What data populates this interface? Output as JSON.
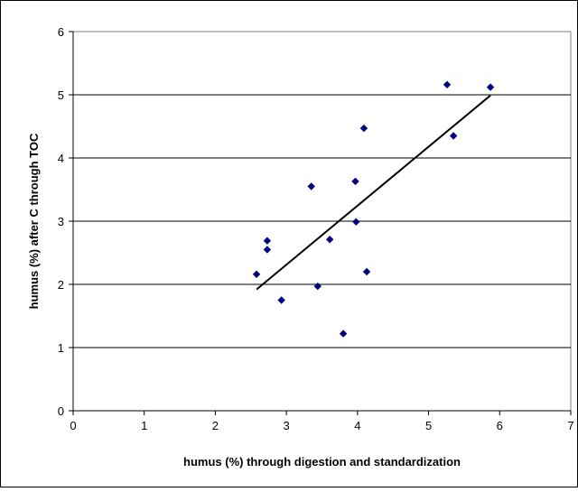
{
  "chart_data": {
    "type": "scatter",
    "title": "",
    "xlabel": "humus (%) through digestion and standardization",
    "ylabel": "humus (%) after C through TOC",
    "xlim": [
      0,
      7
    ],
    "ylim": [
      0,
      6
    ],
    "x_ticks": [
      "0",
      "1",
      "2",
      "3",
      "4",
      "5",
      "6",
      "7"
    ],
    "y_ticks": [
      "0",
      "1",
      "2",
      "3",
      "4",
      "5",
      "6"
    ],
    "grid": "horizontal",
    "legend": "none",
    "point_color": "#000080",
    "trend_color": "#000000",
    "points": [
      {
        "x": 2.58,
        "y": 2.16
      },
      {
        "x": 2.73,
        "y": 2.69
      },
      {
        "x": 2.73,
        "y": 2.55
      },
      {
        "x": 2.93,
        "y": 1.75
      },
      {
        "x": 3.35,
        "y": 3.55
      },
      {
        "x": 3.44,
        "y": 1.97
      },
      {
        "x": 3.61,
        "y": 2.71
      },
      {
        "x": 3.8,
        "y": 1.22
      },
      {
        "x": 3.97,
        "y": 3.63
      },
      {
        "x": 3.98,
        "y": 2.99
      },
      {
        "x": 4.09,
        "y": 4.47
      },
      {
        "x": 4.13,
        "y": 2.2
      },
      {
        "x": 5.26,
        "y": 5.16
      },
      {
        "x": 5.35,
        "y": 4.35
      },
      {
        "x": 5.87,
        "y": 5.12
      }
    ],
    "trendline": {
      "x": [
        2.58,
        5.87
      ],
      "y": [
        1.92,
        4.99
      ]
    }
  }
}
